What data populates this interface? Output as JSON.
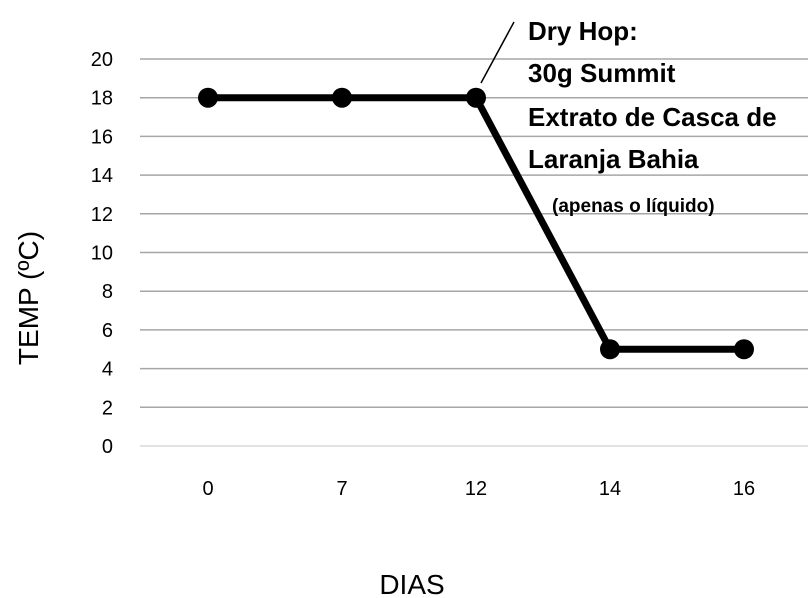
{
  "chart_data": {
    "type": "line",
    "categories": [
      "0",
      "7",
      "12",
      "14",
      "16"
    ],
    "series": [
      {
        "values": [
          18,
          18,
          18,
          5,
          5
        ]
      }
    ],
    "xlabel": "DIAS",
    "ylabel": "TEMP (ºC)",
    "ylim": [
      0,
      20
    ],
    "yticks": [
      "0",
      "2",
      "4",
      "6",
      "8",
      "10",
      "12",
      "14",
      "16",
      "18",
      "20"
    ],
    "grid": true,
    "legend": "none",
    "line_color": "#000000",
    "grid_color": "#a6a6a6",
    "annotation": {
      "point_category": "12",
      "lines": [
        "Dry Hop:",
        "30g Summit",
        "Extrato de Casca de",
        "Laranja Bahia"
      ],
      "note": "(apenas o líquido)"
    }
  }
}
